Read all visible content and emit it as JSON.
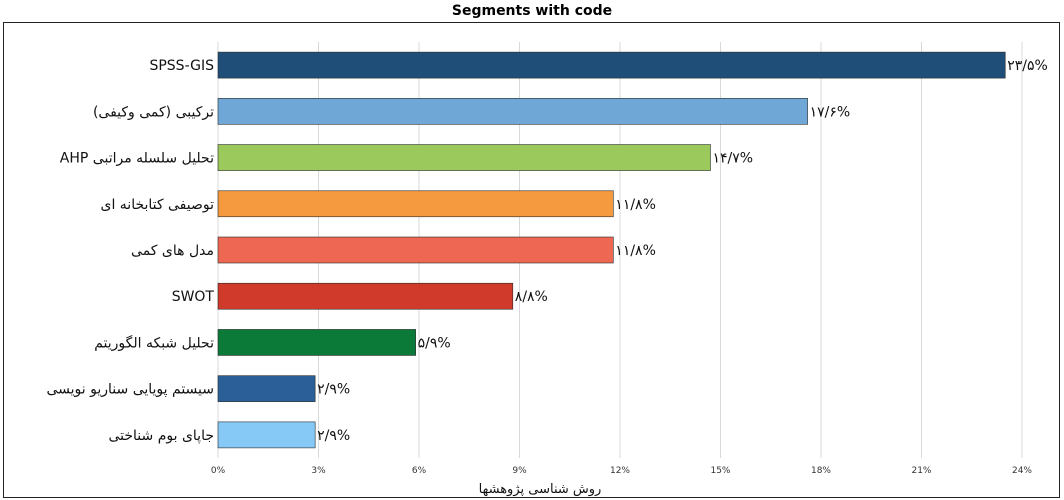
{
  "chart_data": {
    "type": "bar",
    "orientation": "horizontal",
    "title": "Segments with code",
    "xlabel": "روش شناسی پژوهشها",
    "xlim": [
      0,
      24
    ],
    "xticks": [
      0,
      3,
      6,
      9,
      12,
      15,
      18,
      21,
      24
    ],
    "xtick_labels": [
      "0%",
      "3%",
      "6%",
      "9%",
      "12%",
      "15%",
      "18%",
      "21%",
      "24%"
    ],
    "grid": true,
    "categories": [
      "SPSS-GIS",
      "ترکیبی (کمی وکیفی)",
      "AHP تحلیل سلسله مراتبی",
      "توصیفی کتابخانه ای",
      "مدل های کمی",
      "SWOT",
      "تحلیل شبکه الگوریتم",
      "سیستم پویایی سناریو نویسی",
      "جاپای بوم شناختی"
    ],
    "values": [
      23.5,
      17.6,
      14.7,
      11.8,
      11.8,
      8.8,
      5.9,
      2.9,
      2.9
    ],
    "value_labels": [
      "۲۳/۵%",
      "۱۷/۶%",
      "۱۴/۷%",
      "۱۱/۸%",
      "۱۱/۸%",
      "۸/۸%",
      "۵/۹%",
      "۲/۹%",
      "۲/۹%"
    ],
    "colors": [
      "#1f4e79",
      "#6fa8d6",
      "#9bc95b",
      "#f59a3f",
      "#ee6752",
      "#cf3a2a",
      "#0b7a38",
      "#2a5f97",
      "#86c9f7"
    ]
  }
}
